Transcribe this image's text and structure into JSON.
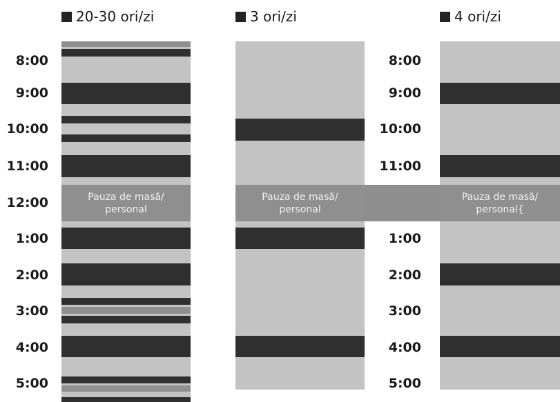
{
  "legend": {
    "col1": "20-30 ori/zi",
    "col2": "3 ori/zi",
    "col3": "4 ori/zi"
  },
  "times": [
    "8:00",
    "9:00",
    "10:00",
    "11:00",
    "12:00",
    "1:00",
    "2:00",
    "3:00",
    "4:00",
    "5:00"
  ],
  "lunch": {
    "line1": "Pauza de masă/",
    "line2": "personal",
    "line2_col3": "personal{"
  },
  "colors": {
    "column_bg": "#c3c3c3",
    "dark_block": "#2f2f2f",
    "mid_block": "#8f8f8f",
    "lunch_band": "#8e8e8e"
  }
}
